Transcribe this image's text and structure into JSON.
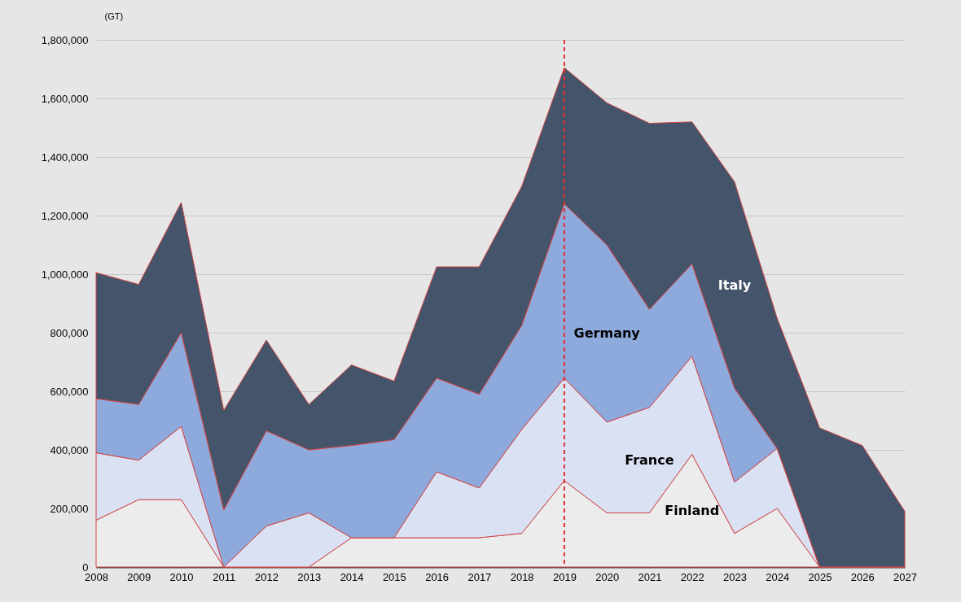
{
  "chart_data": {
    "type": "area",
    "stacked": true,
    "ylabel": "(GT)",
    "categories": [
      "2008",
      "2009",
      "2010",
      "2011",
      "2012",
      "2013",
      "2014",
      "2015",
      "2016",
      "2017",
      "2018",
      "2019",
      "2020",
      "2021",
      "2022",
      "2023",
      "2024",
      "2025",
      "2026",
      "2027"
    ],
    "series": [
      {
        "name": "Finland",
        "color": "#ececec",
        "values": [
          160000,
          230000,
          230000,
          0,
          0,
          0,
          100000,
          100000,
          100000,
          100000,
          115000,
          295000,
          185000,
          185000,
          385000,
          115000,
          200000,
          0,
          0,
          0
        ]
      },
      {
        "name": "France",
        "color": "#d9e1f2",
        "values": [
          230000,
          135000,
          250000,
          0,
          140000,
          185000,
          0,
          0,
          225000,
          170000,
          355000,
          350000,
          310000,
          360000,
          335000,
          175000,
          205000,
          0,
          0,
          0
        ]
      },
      {
        "name": "Germany",
        "color": "#8ea9db",
        "values": [
          185000,
          190000,
          320000,
          195000,
          325000,
          215000,
          315000,
          335000,
          320000,
          320000,
          355000,
          595000,
          605000,
          335000,
          315000,
          320000,
          0,
          0,
          0,
          0
        ]
      },
      {
        "name": "Italy",
        "color": "#44546a",
        "values": [
          430000,
          410000,
          445000,
          340000,
          310000,
          155000,
          275000,
          200000,
          380000,
          435000,
          475000,
          465000,
          485000,
          635000,
          485000,
          705000,
          445000,
          475000,
          415000,
          190000
        ]
      }
    ],
    "ylim": [
      0,
      1800000
    ],
    "yticks": [
      0,
      {
        "value": 200000,
        "label": "200,000"
      },
      {
        "value": 400000,
        "label": "400,000"
      },
      {
        "value": 600000,
        "label": "600,000"
      },
      {
        "value": 800000,
        "label": "800,000"
      },
      {
        "value": 1000000,
        "label": "1,000,000"
      },
      {
        "value": 1200000,
        "label": "1,200,000"
      },
      {
        "value": 1400000,
        "label": "1,400,000"
      },
      {
        "value": 1600000,
        "label": "1,600,000"
      },
      {
        "value": 1800000,
        "label": "1,800,000"
      }
    ],
    "grid": "y",
    "legend": false,
    "ref_lines": [
      {
        "axis": "x",
        "value": "2019",
        "color": "#e03030",
        "line_style": "dashed"
      }
    ]
  }
}
